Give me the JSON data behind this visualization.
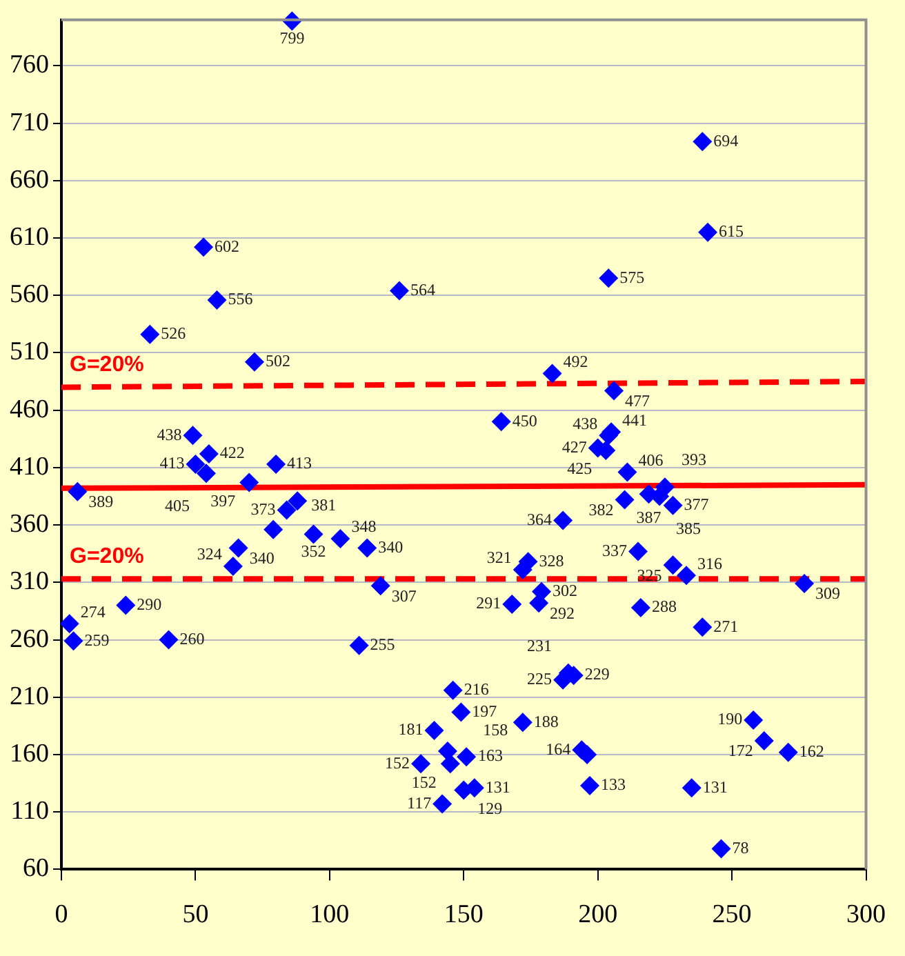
{
  "chart_data": {
    "type": "scatter",
    "xlim": [
      0,
      300
    ],
    "ylim": [
      60,
      800
    ],
    "xticks": [
      0,
      50,
      100,
      150,
      200,
      250,
      300
    ],
    "yticks": [
      60,
      110,
      160,
      210,
      260,
      310,
      360,
      410,
      460,
      510,
      560,
      610,
      660,
      710,
      760
    ],
    "grid": "y",
    "series": [
      {
        "type": "scatter",
        "marker": "diamond",
        "color": "#0000ff",
        "x": [
          86,
          53,
          58,
          33,
          72,
          126,
          204,
          239,
          241,
          183,
          206,
          164,
          204,
          205,
          200,
          203,
          211,
          210,
          225,
          219,
          223,
          228,
          187,
          215,
          228,
          233,
          277,
          172,
          174,
          179,
          178,
          168,
          216,
          239,
          189,
          187,
          191,
          146,
          149,
          139,
          144,
          145,
          151,
          154,
          150,
          142,
          134,
          172,
          194,
          196,
          197,
          235,
          246,
          258,
          262,
          271,
          6,
          3,
          4.5,
          24,
          40,
          66,
          64,
          79,
          84,
          88,
          94,
          104,
          114,
          119,
          111,
          50,
          49,
          55,
          54,
          70,
          80
        ],
        "values": [
          799,
          602,
          556,
          526,
          502,
          564,
          575,
          694,
          615,
          492,
          477,
          450,
          438,
          441,
          427,
          425,
          406,
          382,
          393,
          387,
          385,
          377,
          364,
          337,
          325,
          316,
          309,
          321,
          328,
          302,
          292,
          291,
          288,
          271,
          231,
          225,
          229,
          216,
          197,
          181,
          163,
          152,
          158,
          131,
          129,
          117,
          152,
          188,
          164,
          160,
          133,
          131,
          78,
          190,
          172,
          162,
          389,
          274,
          259,
          290,
          260,
          340,
          324,
          356,
          373,
          381,
          352,
          348,
          340,
          307,
          255,
          413,
          438,
          422,
          405,
          397,
          413
        ],
        "value_labels": [
          "799",
          "602",
          "556",
          "526",
          "502",
          "564",
          "575",
          "694",
          "615",
          "492",
          "477",
          "450",
          "438",
          "441",
          "427",
          "425",
          "406",
          "382",
          "393",
          "387",
          "385",
          "377",
          "364",
          "337",
          "325",
          "316",
          "309",
          "321",
          "328",
          "302",
          "292",
          "291",
          "288",
          "271",
          "231",
          "225",
          "229",
          "216",
          "197",
          "181",
          "163",
          "152",
          "158",
          "131",
          "129",
          "117",
          "152",
          "188",
          "164",
          null,
          "133",
          "131",
          "78",
          "190",
          "172",
          "162",
          "389",
          "274",
          "259",
          "290",
          "260",
          "340",
          "324",
          null,
          "373",
          "381",
          "352",
          "348",
          "340",
          "307",
          "255",
          "413",
          "438",
          "422",
          "405",
          "397",
          "413"
        ]
      },
      {
        "type": "line",
        "color": "#ff0000",
        "line_style": "solid",
        "x": [
          0,
          300
        ],
        "values": [
          392,
          395
        ]
      },
      {
        "type": "line",
        "name": "G=20%",
        "color": "#ff0000",
        "line_style": "dashed",
        "x": [
          0,
          300
        ],
        "values": [
          480,
          485
        ]
      },
      {
        "type": "line",
        "name": "G=20%",
        "color": "#ff0000",
        "line_style": "dashed",
        "x": [
          0,
          300
        ],
        "values": [
          313,
          313
        ]
      }
    ]
  }
}
